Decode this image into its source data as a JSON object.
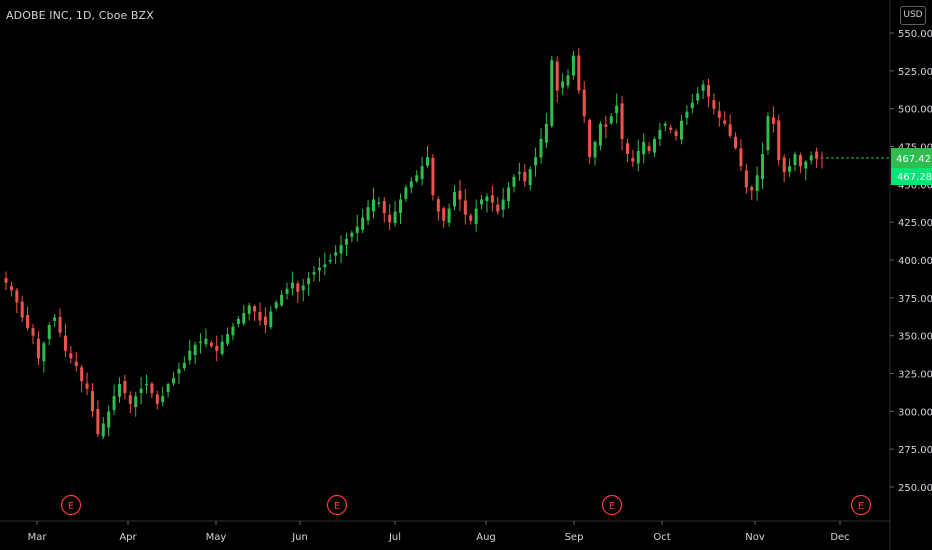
{
  "header": {
    "title": "ADOBE INC, 1D, Cboe BZX",
    "currency": "USD"
  },
  "colors": {
    "up": "#26a69a",
    "up_bright": "#2ebd4e",
    "down": "#ef5350",
    "axis_text": "#d1d4dc",
    "last_price_bg": "#2ebd4e",
    "event": "#f23645"
  },
  "price_axis": {
    "ticks": [
      "550.00",
      "525.00",
      "500.00",
      "475.00",
      "450.00",
      "425.00",
      "400.00",
      "375.00",
      "350.00",
      "325.00",
      "300.00",
      "275.00",
      "250.00"
    ]
  },
  "time_axis": {
    "labels": [
      "Mar",
      "Apr",
      "May",
      "Jun",
      "Jul",
      "Aug",
      "Sep",
      "Oct",
      "Nov",
      "Dec"
    ]
  },
  "last_price": {
    "value": "467.42",
    "close": "467.28"
  },
  "earnings_events": [
    {
      "label": "E",
      "date": "Mar"
    },
    {
      "label": "E",
      "date": "Jun"
    },
    {
      "label": "E",
      "date": "Sep"
    },
    {
      "label": "E",
      "date": "Dec"
    }
  ],
  "chart_data": {
    "type": "candlestick",
    "symbol": "ADOBE INC",
    "interval": "1D",
    "exchange": "Cboe BZX",
    "ylim": [
      230,
      555
    ],
    "x_labels": [
      "Mar",
      "Apr",
      "May",
      "Jun",
      "Jul",
      "Aug",
      "Sep",
      "Oct",
      "Nov",
      "Dec"
    ],
    "close_series": [
      385,
      380,
      372,
      362,
      355,
      350,
      335,
      345,
      357,
      362,
      352,
      340,
      335,
      330,
      320,
      315,
      300,
      285,
      292,
      300,
      310,
      318,
      312,
      305,
      310,
      315,
      318,
      312,
      305,
      310,
      318,
      322,
      328,
      332,
      340,
      344,
      346,
      348,
      343,
      340,
      346,
      351,
      356,
      361,
      365,
      370,
      366,
      360,
      357,
      366,
      372,
      377,
      381,
      385,
      379,
      383,
      388,
      392,
      395,
      397,
      400,
      405,
      410,
      414,
      418,
      422,
      428,
      435,
      440,
      438,
      431,
      425,
      432,
      440,
      448,
      452,
      456,
      462,
      468,
      443,
      432,
      426,
      434,
      445,
      440,
      430,
      426,
      434,
      440,
      442,
      438,
      432,
      440,
      448,
      455,
      458,
      452,
      460,
      468,
      480,
      490,
      532,
      512,
      518,
      522,
      535,
      512,
      495,
      468,
      478,
      490,
      488,
      495,
      502,
      480,
      470,
      465,
      472,
      478,
      472,
      480,
      486,
      490,
      486,
      482,
      492,
      498,
      504,
      510,
      516,
      508,
      500,
      494,
      490,
      482,
      474,
      462,
      448,
      446,
      456,
      470,
      495,
      490,
      466,
      458,
      462,
      470,
      462,
      465,
      469,
      467,
      467.28
    ]
  }
}
